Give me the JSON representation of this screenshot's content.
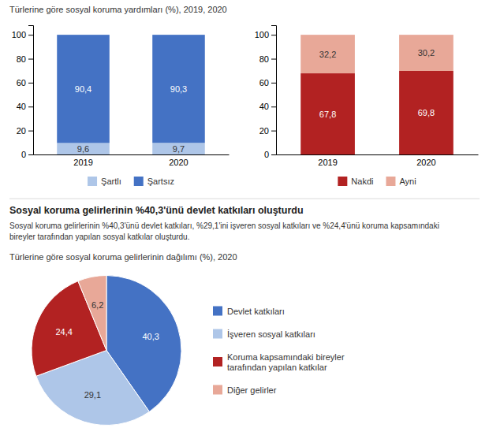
{
  "title": "Sosyal koruma gelirlerinin %40,3'ünü devlet katkıları oluşturdu",
  "subtitle": "Sosyal koruma gelirlerinin %40,3'ünü devlet katkıları, %29,1'ini işveren sosyal katkıları ve %24,4'ünü koruma kapsamındaki\nbireyler tarafından yapılan sosyal katkılar oluşturdu.",
  "chart_data": [
    {
      "type": "bar",
      "title": "Türlerine göre sosyal koruma yardımları (%), 2019, 2020",
      "categories": [
        "2019",
        "2020"
      ],
      "series": [
        {
          "name": "Şartlı",
          "color": "#aec6e8",
          "values": [
            9.6,
            9.7
          ],
          "value_labels": [
            "9,6",
            "9,7"
          ]
        },
        {
          "name": "Şartsız",
          "color": "#4472c4",
          "values": [
            90.4,
            90.3
          ],
          "value_labels": [
            "90,4",
            "90,3"
          ]
        }
      ],
      "stacked": true,
      "data_labels": true,
      "legend": "bottom",
      "grid": false,
      "ylim": [
        0,
        108
      ],
      "yticks": [
        0,
        20,
        40,
        60,
        80,
        100
      ]
    },
    {
      "type": "bar",
      "categories": [
        "2019",
        "2020"
      ],
      "series": [
        {
          "name": "Nakdi",
          "color": "#b22222",
          "values": [
            67.8,
            69.8
          ],
          "value_labels": [
            "67,8",
            "69,8"
          ]
        },
        {
          "name": "Ayni",
          "color": "#e8a898",
          "values": [
            32.2,
            30.2
          ],
          "value_labels": [
            "32,2",
            "30,2"
          ]
        }
      ],
      "stacked": true,
      "data_labels": true,
      "legend": "bottom",
      "grid": false,
      "ylim": [
        0,
        108
      ],
      "yticks": [
        0,
        20,
        40,
        60,
        80,
        100
      ]
    },
    {
      "type": "pie",
      "title": "Türlerine göre sosyal koruma gelirlerinin dağılımı (%), 2020",
      "categories": [
        "Devlet katkıları",
        "İşveren sosyal katkıları",
        "Koruma kapsamındaki bireyler\ntarafından yapılan katkılar",
        "Diğer gelirler"
      ],
      "values": [
        40.3,
        29.1,
        24.4,
        6.2
      ],
      "value_labels": [
        "40,3",
        "29,1",
        "24,4",
        "6,2"
      ],
      "colors": [
        "#4472c4",
        "#aec6e8",
        "#b22222",
        "#e8a898"
      ],
      "data_labels": true,
      "legend": "right"
    }
  ]
}
